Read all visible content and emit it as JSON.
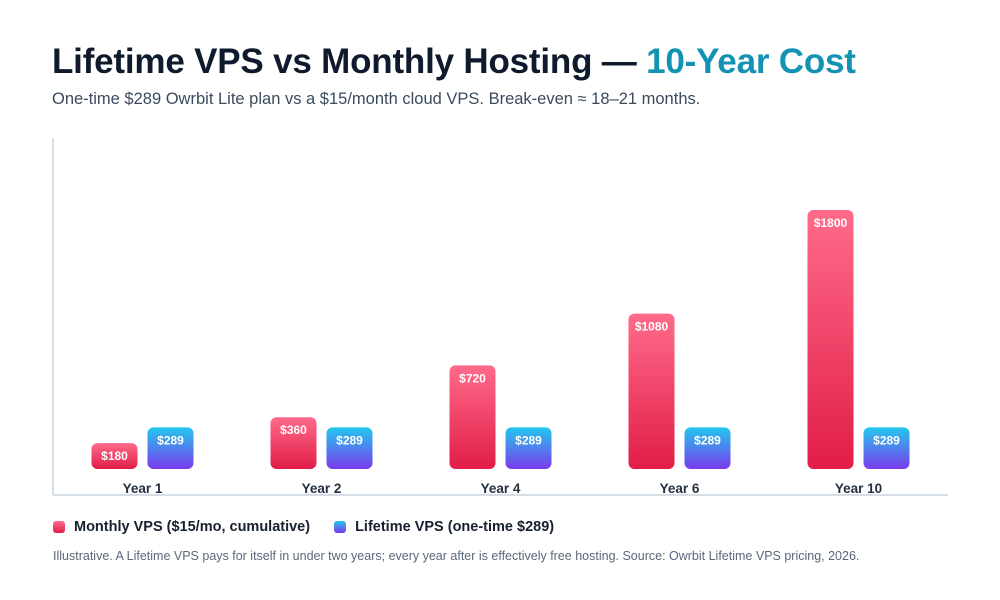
{
  "header": {
    "title_main": "Lifetime VPS vs Monthly Hosting — ",
    "title_accent": "10-Year Cost",
    "subtitle": "One-time $289 Owrbit Lite plan vs a $15/month cloud VPS. Break-even ≈ 18–21 months."
  },
  "colors": {
    "title_accent": "#1393b3",
    "monthly_top": "#ff6b8a",
    "monthly_bottom": "#e11d48",
    "lifetime_top": "#22c7ee",
    "lifetime_bottom": "#7c3aed"
  },
  "chart_data": {
    "type": "bar",
    "categories": [
      "Year 1",
      "Year 2",
      "Year 4",
      "Year 6",
      "Year 10"
    ],
    "series": [
      {
        "name": "Monthly VPS ($15/mo, cumulative)",
        "values": [
          180,
          360,
          720,
          1080,
          1800
        ],
        "labels": [
          "$180",
          "$360",
          "$720",
          "$1080",
          "$1800"
        ]
      },
      {
        "name": "Lifetime VPS (one-time $289)",
        "values": [
          289,
          289,
          289,
          289,
          289
        ],
        "labels": [
          "$289",
          "$289",
          "$289",
          "$289",
          "$289"
        ]
      }
    ],
    "ylim": [
      0,
      2300
    ],
    "grid": false,
    "legend_position": "bottom-left"
  },
  "legend": {
    "monthly_label": "Monthly VPS ($15/mo, cumulative)",
    "lifetime_label": "Lifetime VPS (one-time $289)"
  },
  "footnote": "Illustrative. A Lifetime VPS pays for itself in under two years; every year after is effectively free hosting. Source: Owrbit Lifetime VPS pricing, 2026."
}
